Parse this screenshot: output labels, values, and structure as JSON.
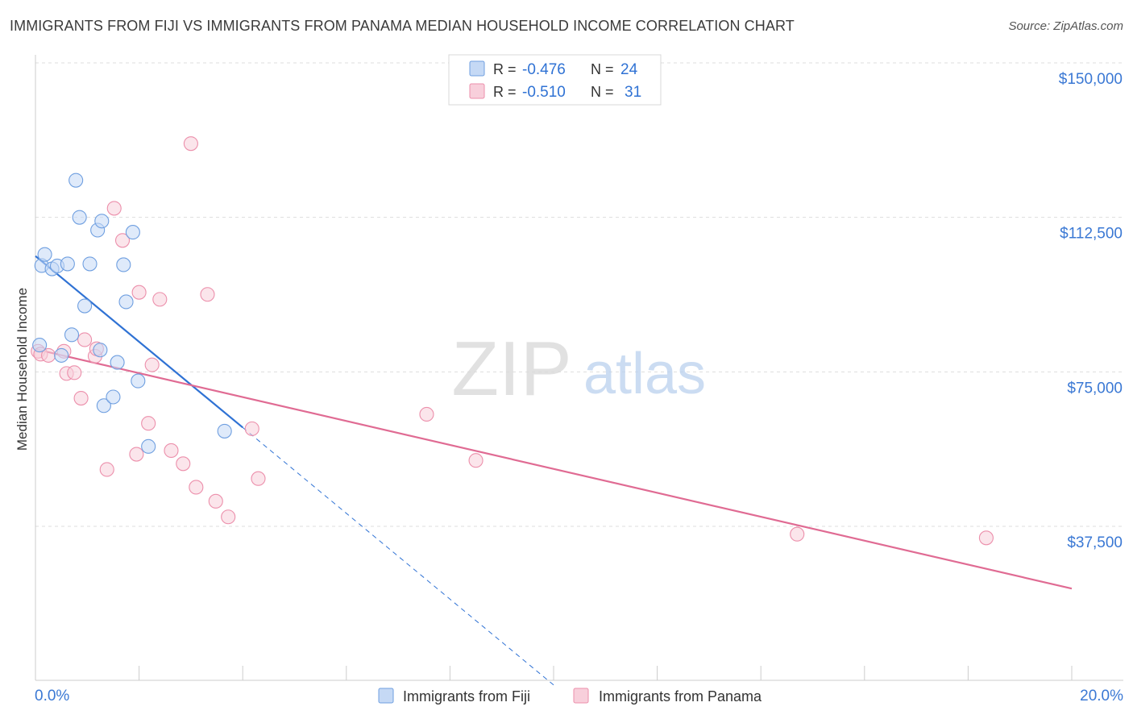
{
  "chart_data": {
    "type": "scatter",
    "title": "IMMIGRANTS FROM FIJI VS IMMIGRANTS FROM PANAMA MEDIAN HOUSEHOLD INCOME CORRELATION CHART",
    "source": "Source: ZipAtlas.com",
    "watermark": {
      "zip": "ZIP",
      "atlas": "atlas"
    },
    "ylabel": "Median Household Income",
    "xlabel": "",
    "xlim": [
      0,
      20
    ],
    "ylim": [
      0,
      152000
    ],
    "x_tick_labels": [
      {
        "value": 0,
        "label": "0.0%"
      },
      {
        "value": 20,
        "label": "20.0%"
      }
    ],
    "y_tick_labels": [
      {
        "value": 37500,
        "label": "$37,500"
      },
      {
        "value": 75000,
        "label": "$75,000"
      },
      {
        "value": 112500,
        "label": "$112,500"
      },
      {
        "value": 150000,
        "label": "$150,000"
      }
    ],
    "x_ticks": [
      0,
      2,
      4,
      6,
      8,
      10,
      12,
      14,
      16,
      18,
      20
    ],
    "grid": true,
    "legend": {
      "placement": "top-center",
      "entries": [
        {
          "r_label": "R =",
          "r_value": "-0.476",
          "n_label": "N =",
          "n_value": "24"
        },
        {
          "r_label": "R =",
          "r_value": "-0.510",
          "n_label": "N =",
          "n_value": "31"
        }
      ]
    },
    "series": [
      {
        "name": "Immigrants from Fiji",
        "color": "#6f9fe0",
        "fill": "#c5d9f5",
        "line_color": "#2f72d4",
        "points": [
          [
            0.08,
            81500
          ],
          [
            0.12,
            100800
          ],
          [
            0.18,
            103500
          ],
          [
            0.32,
            100000
          ],
          [
            0.42,
            100700
          ],
          [
            0.5,
            79000
          ],
          [
            0.62,
            101200
          ],
          [
            0.7,
            84000
          ],
          [
            0.78,
            121500
          ],
          [
            0.85,
            112500
          ],
          [
            0.95,
            91000
          ],
          [
            1.05,
            101200
          ],
          [
            1.2,
            109400
          ],
          [
            1.28,
            111600
          ],
          [
            1.25,
            80300
          ],
          [
            1.32,
            66800
          ],
          [
            1.5,
            68900
          ],
          [
            1.58,
            77300
          ],
          [
            1.7,
            101000
          ],
          [
            1.75,
            92000
          ],
          [
            1.88,
            108900
          ],
          [
            1.98,
            72800
          ],
          [
            2.18,
            56900
          ],
          [
            3.65,
            60600
          ]
        ],
        "trend": {
          "x": [
            0,
            4
          ],
          "y": [
            103100,
            61500
          ]
        },
        "trend_extension": {
          "x": [
            4,
            10
          ],
          "y": [
            61500,
            -1000
          ]
        }
      },
      {
        "name": "Immigrants from Panama",
        "color": "#ec8fab",
        "fill": "#f8cfdb",
        "line_color": "#e06b93",
        "points": [
          [
            0.05,
            80000
          ],
          [
            0.1,
            79300
          ],
          [
            0.25,
            79000
          ],
          [
            0.55,
            80000
          ],
          [
            0.6,
            74600
          ],
          [
            0.75,
            74800
          ],
          [
            0.88,
            68600
          ],
          [
            0.95,
            82800
          ],
          [
            1.15,
            78800
          ],
          [
            1.18,
            80600
          ],
          [
            1.38,
            51300
          ],
          [
            1.52,
            114700
          ],
          [
            1.68,
            106900
          ],
          [
            1.95,
            55000
          ],
          [
            2.0,
            94300
          ],
          [
            2.18,
            62500
          ],
          [
            2.25,
            76700
          ],
          [
            2.4,
            92600
          ],
          [
            2.62,
            55900
          ],
          [
            2.85,
            52700
          ],
          [
            3.0,
            130400
          ],
          [
            3.1,
            47000
          ],
          [
            3.32,
            93800
          ],
          [
            3.48,
            43600
          ],
          [
            3.72,
            39800
          ],
          [
            4.18,
            61200
          ],
          [
            4.3,
            49100
          ],
          [
            7.55,
            64700
          ],
          [
            8.5,
            53500
          ],
          [
            14.7,
            35600
          ],
          [
            18.35,
            34700
          ]
        ],
        "trend": {
          "x": [
            0,
            20
          ],
          "y": [
            80500,
            22400
          ]
        }
      }
    ]
  }
}
